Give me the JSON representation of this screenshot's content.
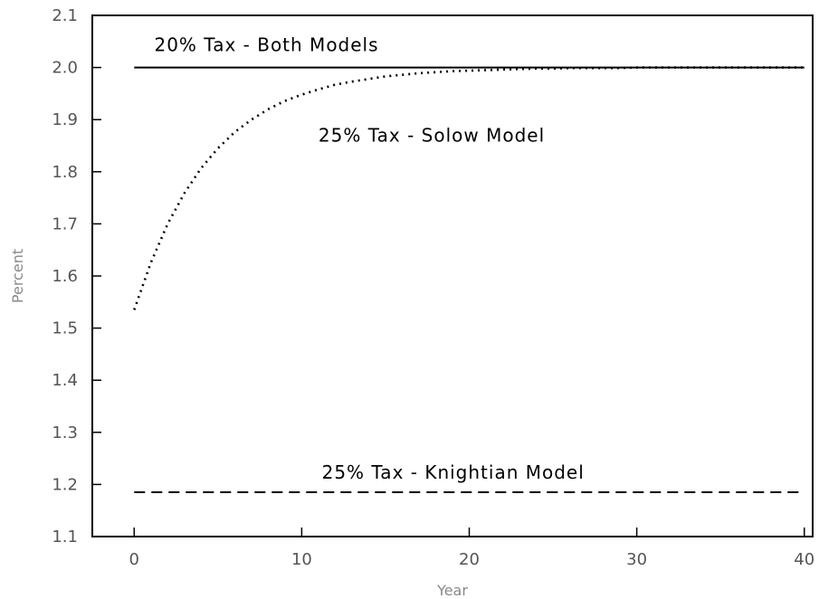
{
  "chart_data": {
    "type": "line",
    "title": "",
    "xlabel": "Year",
    "ylabel": "Percent",
    "xlim": [
      -2.5,
      40.5
    ],
    "ylim": [
      1.1,
      2.1
    ],
    "xticks": [
      0,
      10,
      20,
      30,
      40
    ],
    "yticks": [
      1.1,
      1.2,
      1.3,
      1.4,
      1.5,
      1.6,
      1.7,
      1.8,
      1.9,
      2.0,
      2.1
    ],
    "ytick_labels": [
      "1.1",
      "1.2",
      "1.3",
      "1.4",
      "1.5",
      "1.6",
      "1.7",
      "1.8",
      "1.9",
      "2.0",
      "2.1"
    ],
    "grid": false,
    "legend": "none",
    "series": [
      {
        "style": "solid",
        "color": "#000000",
        "x": [
          0,
          40
        ],
        "y": [
          2.0,
          2.0
        ]
      },
      {
        "style": "dotted",
        "color": "#000000",
        "x": [
          0,
          1,
          2,
          3,
          4,
          5,
          6,
          7,
          8,
          9,
          10,
          11,
          12,
          13,
          14,
          15,
          16,
          17,
          18,
          19,
          20,
          21,
          22,
          23,
          24,
          25,
          26,
          27,
          28,
          29,
          30,
          31,
          32,
          33,
          34,
          35,
          36,
          37,
          38,
          39,
          40
        ],
        "y": [
          1.535,
          1.626,
          1.7,
          1.759,
          1.807,
          1.845,
          1.876,
          1.9,
          1.92,
          1.936,
          1.948,
          1.958,
          1.967,
          1.973,
          1.978,
          1.983,
          1.986,
          1.989,
          1.991,
          1.993,
          1.994,
          1.995,
          1.996,
          1.997,
          1.998,
          1.998,
          1.999,
          1.999,
          1.999,
          1.999,
          2.0,
          2.0,
          2.0,
          2.0,
          2.0,
          2.0,
          2.0,
          2.0,
          2.0,
          2.0,
          2.0
        ]
      },
      {
        "style": "dashed",
        "color": "#000000",
        "x": [
          0,
          40
        ],
        "y": [
          1.185,
          1.185
        ]
      }
    ],
    "annotations": [
      {
        "text": "20% Tax - Both Models",
        "x": 1.2,
        "y": 2.031
      },
      {
        "text": "25% Tax - Solow Model",
        "x": 11.0,
        "y": 1.858
      },
      {
        "text": "25% Tax - Knightian Model",
        "x": 11.2,
        "y": 1.211
      }
    ]
  }
}
